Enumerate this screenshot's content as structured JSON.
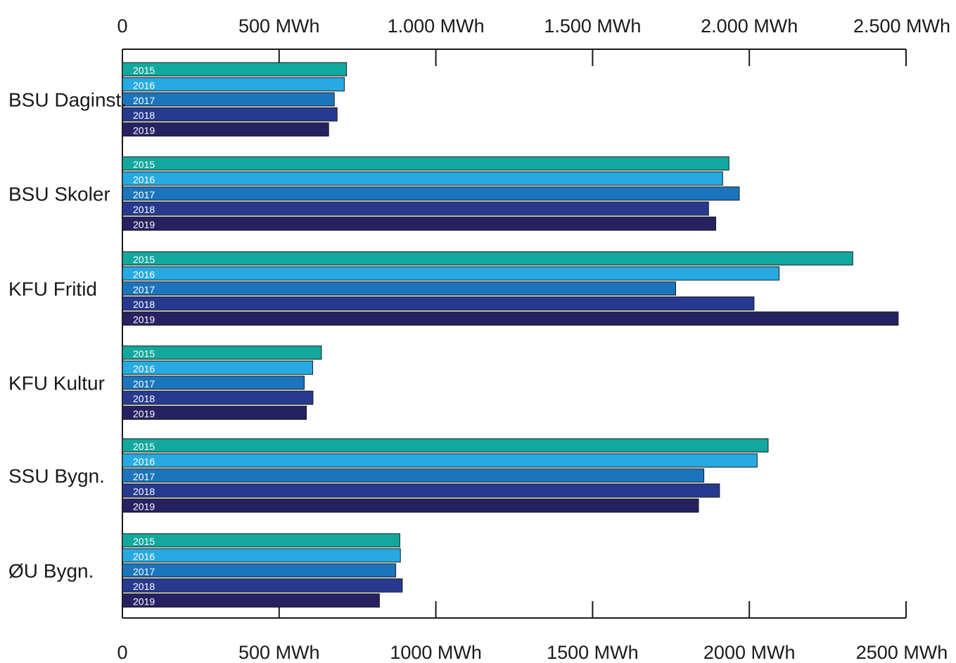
{
  "chart_data": {
    "type": "bar",
    "orientation": "horizontal",
    "categories": [
      "BSU Daginst.",
      "BSU Skoler",
      "KFU Fritid",
      "KFU Kultur",
      "SSU Bygn.",
      "ØU Bygn."
    ],
    "series": [
      {
        "name": "2015",
        "color": "#13a89e",
        "values": [
          715,
          1935,
          2330,
          635,
          2060,
          885
        ]
      },
      {
        "name": "2016",
        "color": "#27aae1",
        "values": [
          708,
          1915,
          2095,
          607,
          2025,
          887
        ]
      },
      {
        "name": "2017",
        "color": "#1c75bc",
        "values": [
          676,
          1968,
          1765,
          580,
          1855,
          872
        ]
      },
      {
        "name": "2018",
        "color": "#283a90",
        "values": [
          685,
          1870,
          2015,
          608,
          1905,
          893
        ]
      },
      {
        "name": "2019",
        "color": "#262262",
        "values": [
          658,
          1893,
          2475,
          587,
          1838,
          820
        ]
      }
    ],
    "xlim": [
      0,
      2500
    ],
    "top_tick_labels": [
      "0",
      "500 MWh",
      "1.000 MWh",
      "1.500 MWh",
      "2.000 MWh",
      "2.500 MWh"
    ],
    "bottom_tick_labels": [
      "0",
      "500 MWh",
      "1000 MWh",
      "1500 MWh",
      "2000 MWh",
      "2500 MWh"
    ],
    "tick_values": [
      0,
      500,
      1000,
      1500,
      2000,
      2500
    ],
    "legend": "none (series names printed inside bars)",
    "grid": false,
    "title": "",
    "xlabel": "",
    "ylabel": ""
  }
}
